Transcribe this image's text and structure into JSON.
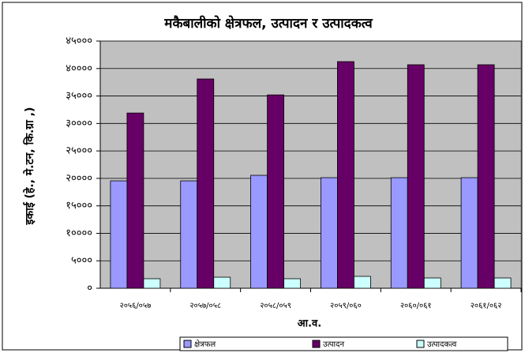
{
  "chart_data": {
    "type": "bar",
    "title": "मकैबालीको क्षेत्रफल, उत्पादन र उत्पादकत्व",
    "ylabel": "इकाई (हे., मे.टन, कि.ग्रा ,)",
    "xlabel": "आ.व.",
    "categories": [
      "२०५६/०५७",
      "२०५७/०५८",
      "२०५८/०५९",
      "२०५९/०६०",
      "२०६०/०६१",
      "२०६१/०६२"
    ],
    "series": [
      {
        "name": "क्षेत्रफल",
        "color": "#9999ff",
        "values": [
          19550,
          19550,
          20560,
          20130,
          20130,
          20130
        ]
      },
      {
        "name": "उत्पादन",
        "color": "#660066",
        "values": [
          31900,
          38100,
          35200,
          41260,
          40690,
          40690
        ]
      },
      {
        "name": "उत्पादकत्व",
        "color": "#ccffff",
        "values": [
          1730,
          2010,
          1730,
          2160,
          1870,
          1870
        ]
      }
    ],
    "ylim": [
      0,
      45000
    ],
    "yticks": [
      {
        "value": 0,
        "label": "०"
      },
      {
        "value": 5000,
        "label": "५०००"
      },
      {
        "value": 10000,
        "label": "१००००"
      },
      {
        "value": 15000,
        "label": "१५०००"
      },
      {
        "value": 20000,
        "label": "२००००"
      },
      {
        "value": 25000,
        "label": "२५०००"
      },
      {
        "value": 30000,
        "label": "३००००"
      },
      {
        "value": 35000,
        "label": "३५०००"
      },
      {
        "value": 40000,
        "label": "४००००"
      },
      {
        "value": 45000,
        "label": "४५०००"
      }
    ],
    "grid": true,
    "legend": "bottom"
  }
}
